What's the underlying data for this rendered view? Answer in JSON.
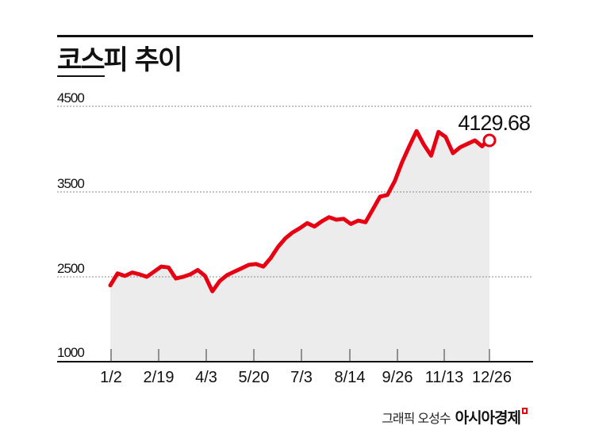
{
  "chart_data": {
    "type": "line",
    "title": "코스피 추이",
    "xlabel": "",
    "ylabel": "",
    "y_tick_labels": [
      "4500",
      "3500",
      "2500",
      "1000"
    ],
    "y_ticks": [
      4500,
      3500,
      2500,
      1000
    ],
    "ylim": [
      1000,
      4500
    ],
    "grid": "horizontal dotted",
    "x_tick_labels": [
      "1/2",
      "2/19",
      "4/3",
      "5/20",
      "7/3",
      "8/14",
      "9/26",
      "11/13",
      "12/26"
    ],
    "annotation": {
      "text": "4129.68",
      "at": "12/26",
      "value": 4129.68
    },
    "series": [
      {
        "name": "KOSPI",
        "color": "#e60012",
        "x": [
          "1/2",
          "1/9",
          "1/16",
          "1/23",
          "1/31",
          "2/7",
          "2/14",
          "2/19",
          "2/26",
          "3/5",
          "3/12",
          "3/19",
          "3/26",
          "4/3",
          "4/7",
          "4/9",
          "4/16",
          "4/23",
          "4/30",
          "5/9",
          "5/20",
          "5/27",
          "6/3",
          "6/10",
          "6/17",
          "6/24",
          "7/3",
          "7/10",
          "7/17",
          "7/24",
          "7/31",
          "8/7",
          "8/14",
          "8/21",
          "8/28",
          "9/4",
          "9/11",
          "9/18",
          "9/26",
          "10/2",
          "10/13",
          "10/20",
          "10/27",
          "11/3",
          "11/5",
          "11/10",
          "11/13",
          "11/20",
          "11/27",
          "12/4",
          "12/11",
          "12/18",
          "12/26"
        ],
        "values": [
          2400,
          2540,
          2510,
          2550,
          2530,
          2500,
          2560,
          2620,
          2610,
          2480,
          2500,
          2530,
          2580,
          2510,
          2330,
          2450,
          2520,
          2560,
          2600,
          2640,
          2650,
          2620,
          2720,
          2850,
          2950,
          3020,
          3070,
          3130,
          3090,
          3150,
          3200,
          3170,
          3180,
          3120,
          3160,
          3140,
          3290,
          3440,
          3460,
          3620,
          3840,
          4030,
          4210,
          4050,
          3920,
          4200,
          4140,
          3950,
          4020,
          4060,
          4100,
          4030,
          4129.68
        ]
      }
    ]
  },
  "header": {
    "title": "코스피 추이"
  },
  "axis": {
    "y": [
      "4500",
      "3500",
      "2500",
      "1000"
    ],
    "x": [
      "1/2",
      "2/19",
      "4/3",
      "5/20",
      "7/3",
      "8/14",
      "9/26",
      "11/13",
      "12/26"
    ]
  },
  "last_value_label": "4129.68",
  "footer": {
    "credit": "그래픽 오성수",
    "brand": "아시아경제"
  },
  "colors": {
    "line": "#e60012",
    "fill": "#ececec",
    "grid": "#888888",
    "text": "#111111"
  }
}
